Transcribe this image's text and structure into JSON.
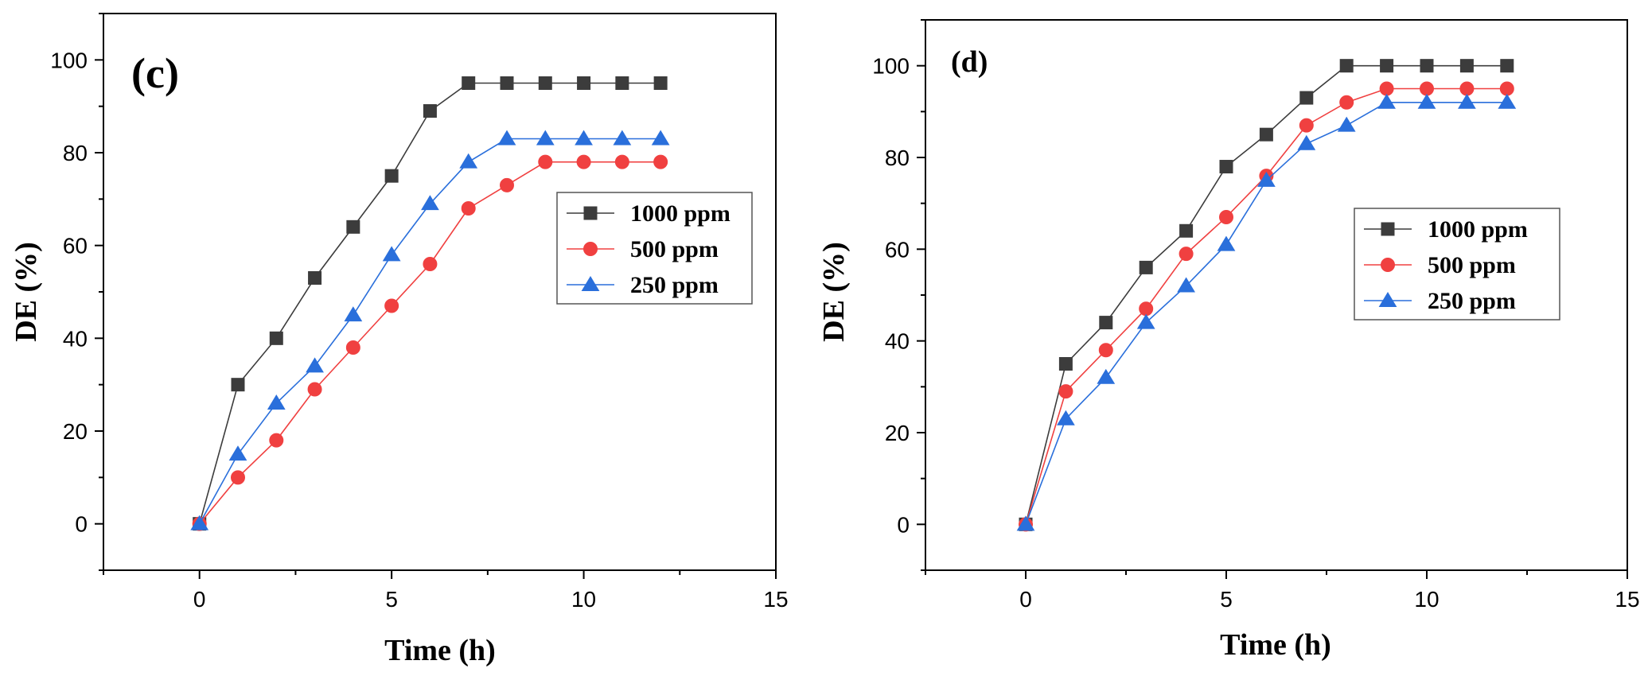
{
  "chart_data": [
    {
      "type": "line",
      "panel_label": "(c)",
      "xlabel": "Time (h)",
      "ylabel": "DE (%)",
      "xlim": [
        -2.5,
        15
      ],
      "ylim": [
        -10,
        110
      ],
      "xticks": [
        0,
        5,
        10,
        15
      ],
      "yticks": [
        0,
        20,
        40,
        60,
        80,
        100
      ],
      "x": [
        0,
        1,
        2,
        3,
        4,
        5,
        6,
        7,
        8,
        9,
        10,
        11,
        12
      ],
      "legend_position": "center-right",
      "series": [
        {
          "name": "1000 ppm",
          "color": "#3c3c3c",
          "marker": "square",
          "values": [
            0,
            30,
            40,
            53,
            64,
            75,
            89,
            95,
            95,
            95,
            95,
            95,
            95
          ]
        },
        {
          "name": "500 ppm",
          "color": "#f04040",
          "marker": "circle",
          "values": [
            0,
            10,
            18,
            29,
            38,
            47,
            56,
            68,
            73,
            78,
            78,
            78,
            78
          ]
        },
        {
          "name": "250 ppm",
          "color": "#2a6fdb",
          "marker": "triangle",
          "values": [
            0,
            15,
            26,
            34,
            45,
            58,
            69,
            78,
            83,
            83,
            83,
            83,
            83
          ]
        }
      ]
    },
    {
      "type": "line",
      "panel_label": "(d)",
      "xlabel": "Time (h)",
      "ylabel": "DE (%)",
      "xlim": [
        -2.5,
        15
      ],
      "ylim": [
        -10,
        110
      ],
      "xticks": [
        0,
        5,
        10,
        15
      ],
      "yticks": [
        0,
        20,
        40,
        60,
        80,
        100
      ],
      "x": [
        0,
        1,
        2,
        3,
        4,
        5,
        6,
        7,
        8,
        9,
        10,
        11,
        12
      ],
      "legend_position": "center-right",
      "series": [
        {
          "name": "1000 ppm",
          "color": "#3c3c3c",
          "marker": "square",
          "values": [
            0,
            35,
            44,
            56,
            64,
            78,
            85,
            93,
            100,
            100,
            100,
            100,
            100
          ]
        },
        {
          "name": "500 ppm",
          "color": "#f04040",
          "marker": "circle",
          "values": [
            0,
            29,
            38,
            47,
            59,
            67,
            76,
            87,
            92,
            95,
            95,
            95,
            95
          ]
        },
        {
          "name": "250 ppm",
          "color": "#2a6fdb",
          "marker": "triangle",
          "values": [
            0,
            23,
            32,
            44,
            52,
            61,
            75,
            83,
            87,
            92,
            92,
            92,
            92
          ]
        }
      ]
    }
  ]
}
